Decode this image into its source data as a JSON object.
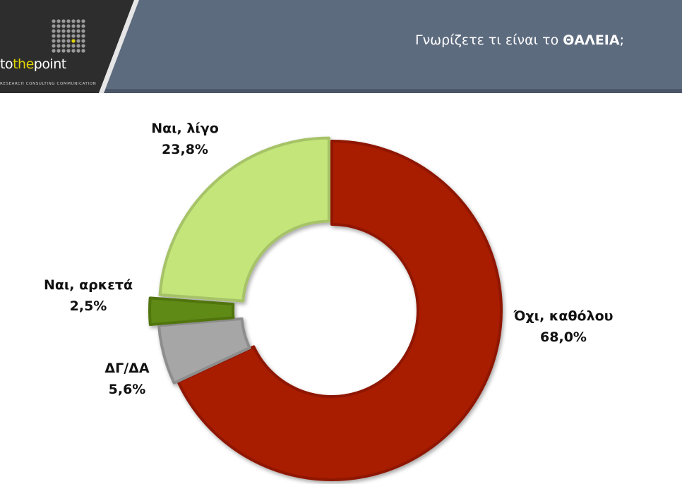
{
  "header": {
    "logo_pre": "to",
    "logo_accent": "the",
    "logo_post": "point",
    "logo_tagline": "RESEARCH  CONSULTING  COMMUNICATION",
    "title_text": "Γνωρίζετε τι είναι το ",
    "title_bold": "ΘΑΛΕΙΑ",
    "title_end": ";"
  },
  "chart_data": {
    "type": "pie",
    "donut": true,
    "title": "",
    "slices": [
      {
        "label": "Όχι, καθόλου",
        "value": 68.0,
        "display": "68,0%",
        "color": "#a81c00"
      },
      {
        "label": "ΔΓ/ΔΑ",
        "value": 5.6,
        "display": "5,6%",
        "color": "#a6a6a6"
      },
      {
        "label": "Ναι, αρκετά",
        "value": 2.5,
        "display": "2,5%",
        "color": "#5f8a14"
      },
      {
        "label": "Ναι, λίγο",
        "value": 23.8,
        "display": "23,8%",
        "color": "#c3e57a"
      }
    ]
  }
}
